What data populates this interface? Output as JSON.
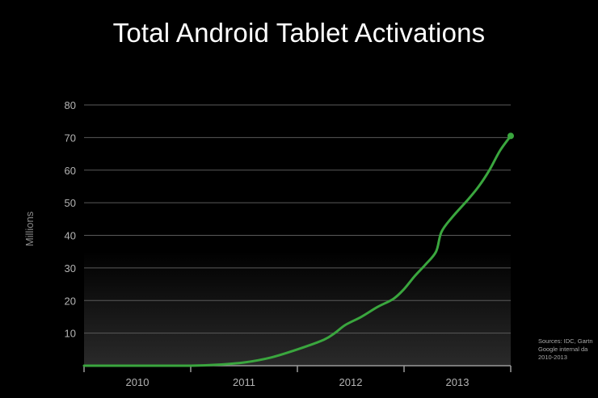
{
  "slide": {
    "title": "Total Android Tablet Activations",
    "sources": [
      "Sources: IDC, Gartn",
      "Google internal da",
      "2010-2013"
    ]
  },
  "colors": {
    "background": "#000000",
    "line": "#3aa63e",
    "gridline": "#5a5a5a",
    "axis_text": "#b4b4b4",
    "ylabel_text": "#8a8a8a",
    "area_gradient_top": "#000000",
    "area_gradient_bottom": "#2a2a2a"
  },
  "chart_data": {
    "type": "line",
    "title": "Total Android Tablet Activations",
    "xlabel": "",
    "ylabel": "Millions",
    "ylim": [
      0,
      80
    ],
    "yticks": [
      10,
      20,
      30,
      40,
      50,
      60,
      70,
      80
    ],
    "ytick_labels": [
      "10",
      "20",
      "30",
      "40",
      "50",
      "60",
      "70",
      "80"
    ],
    "xlim": [
      2009.5,
      2013.5
    ],
    "xtick_labels": [
      {
        "label": "2010",
        "x": 2010
      },
      {
        "label": "2011",
        "x": 2011
      },
      {
        "label": "2012",
        "x": 2012
      },
      {
        "label": "2013",
        "x": 2013
      }
    ],
    "grid": true,
    "legend": "none",
    "series": [
      {
        "x": [
          2009.5,
          2010.0,
          2010.5,
          2010.75,
          2011.0,
          2011.25,
          2011.5,
          2011.75,
          2011.85,
          2011.95,
          2012.1,
          2012.25,
          2012.4,
          2012.5,
          2012.6,
          2012.7,
          2012.8,
          2012.85,
          2012.95,
          2013.1,
          2013.2,
          2013.3,
          2013.4,
          2013.5
        ],
        "y": [
          0,
          0,
          0,
          0.3,
          1.0,
          2.5,
          5.0,
          8.0,
          10.0,
          12.5,
          15.0,
          18.0,
          20.5,
          23.5,
          27.5,
          31.0,
          35.0,
          41.0,
          45.5,
          51.0,
          55.0,
          60.0,
          66.0,
          70.5
        ]
      }
    ],
    "end_marker": true
  }
}
